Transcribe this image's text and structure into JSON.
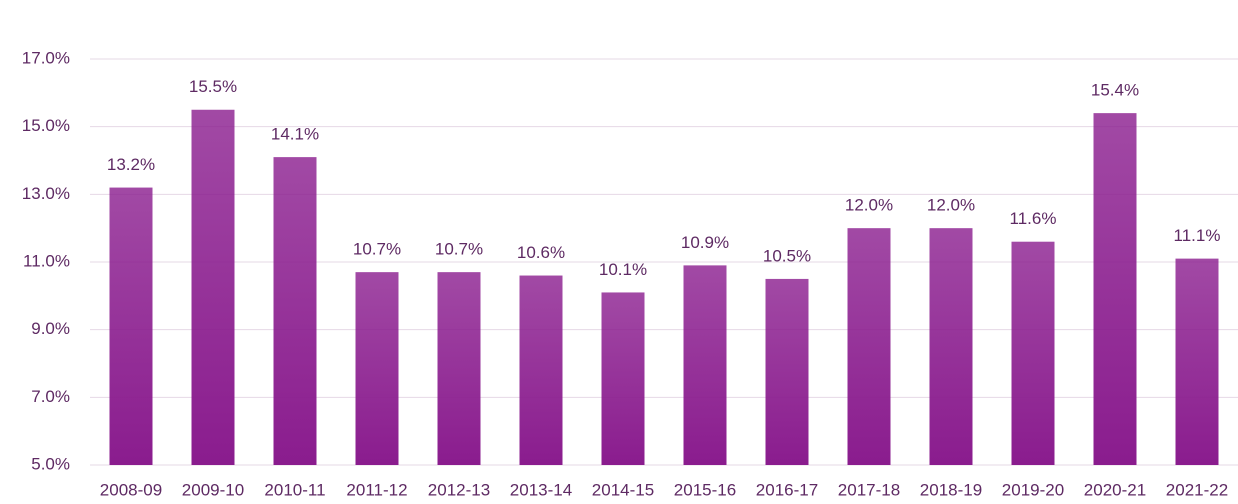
{
  "chart_data": {
    "type": "bar",
    "categories": [
      "2008-09",
      "2009-10",
      "2010-11",
      "2011-12",
      "2012-13",
      "2013-14",
      "2014-15",
      "2015-16",
      "2016-17",
      "2017-18",
      "2018-19",
      "2019-20",
      "2020-21",
      "2021-22"
    ],
    "values": [
      13.2,
      15.5,
      14.1,
      10.7,
      10.7,
      10.6,
      10.1,
      10.9,
      10.5,
      12.0,
      12.0,
      11.6,
      15.4,
      11.1
    ],
    "value_labels": [
      "13.2%",
      "15.5%",
      "14.1%",
      "10.7%",
      "10.7%",
      "10.6%",
      "10.1%",
      "10.9%",
      "10.5%",
      "12.0%",
      "12.0%",
      "11.6%",
      "15.4%",
      "11.1%"
    ],
    "color": "#8a1c8e",
    "ylim": [
      5,
      17
    ],
    "yticks": [
      {
        "value": 5,
        "label": "5.0%"
      },
      {
        "value": 7,
        "label": "7.0%"
      },
      {
        "value": 9,
        "label": "9.0%"
      },
      {
        "value": 11,
        "label": "11.0%"
      },
      {
        "value": 13,
        "label": "13.0%"
      },
      {
        "value": 15,
        "label": "15.0%"
      },
      {
        "value": 17,
        "label": "17.0%"
      }
    ],
    "grid": true
  }
}
